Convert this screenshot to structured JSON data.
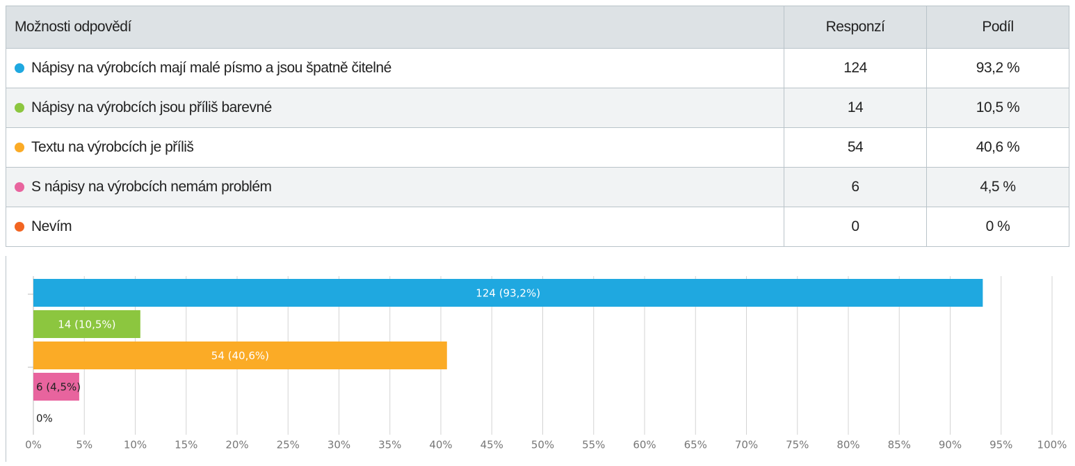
{
  "table": {
    "header": [
      "Možnosti odpovědí",
      "Responzí",
      "Podíl"
    ],
    "rows": [
      [
        "Nápisy na výrobcích mají malé písmo a jsou špatně čitelné",
        "124",
        "93,2 %"
      ],
      [
        "Nápisy na výrobcích jsou příliš barevné",
        "14",
        "10,5 %"
      ],
      [
        "Textu na výrobcích je příliš",
        "54",
        "40,6 %"
      ],
      [
        "S nápisy na výrobcích nemám problém",
        "6",
        "4,5 %"
      ],
      [
        "Nevím",
        "0",
        "0 %"
      ]
    ]
  },
  "chart_data": {
    "type": "bar",
    "orientation": "horizontal",
    "values": [
      93.2,
      10.5,
      40.6,
      4.5,
      0
    ],
    "value_labels": [
      "124 (93,2%)",
      "14 (10,5%)",
      "54 (40,6%)",
      "6 (4,5%)",
      "0%"
    ],
    "colors": [
      "#1fa8e0",
      "#8cc63f",
      "#fbab26",
      "#e8649e",
      "#f26522"
    ],
    "xlim": [
      0,
      100
    ],
    "xticks": [
      {
        "value": 0,
        "label": "0%"
      },
      {
        "value": 5,
        "label": "5%"
      },
      {
        "value": 10,
        "label": "10%"
      },
      {
        "value": 15,
        "label": "15%"
      },
      {
        "value": 20,
        "label": "20%"
      },
      {
        "value": 25,
        "label": "25%"
      },
      {
        "value": 30,
        "label": "30%"
      },
      {
        "value": 35,
        "label": "35%"
      },
      {
        "value": 40,
        "label": "40%"
      },
      {
        "value": 45,
        "label": "45%"
      },
      {
        "value": 50,
        "label": "50%"
      },
      {
        "value": 55,
        "label": "55%"
      },
      {
        "value": 60,
        "label": "60%"
      },
      {
        "value": 65,
        "label": "65%"
      },
      {
        "value": 70,
        "label": "70%"
      },
      {
        "value": 75,
        "label": "75%"
      },
      {
        "value": 80,
        "label": "80%"
      },
      {
        "value": 85,
        "label": "85%"
      },
      {
        "value": 90,
        "label": "90%"
      },
      {
        "value": 95,
        "label": "95%"
      },
      {
        "value": 100,
        "label": "100%"
      }
    ],
    "grid": true
  }
}
